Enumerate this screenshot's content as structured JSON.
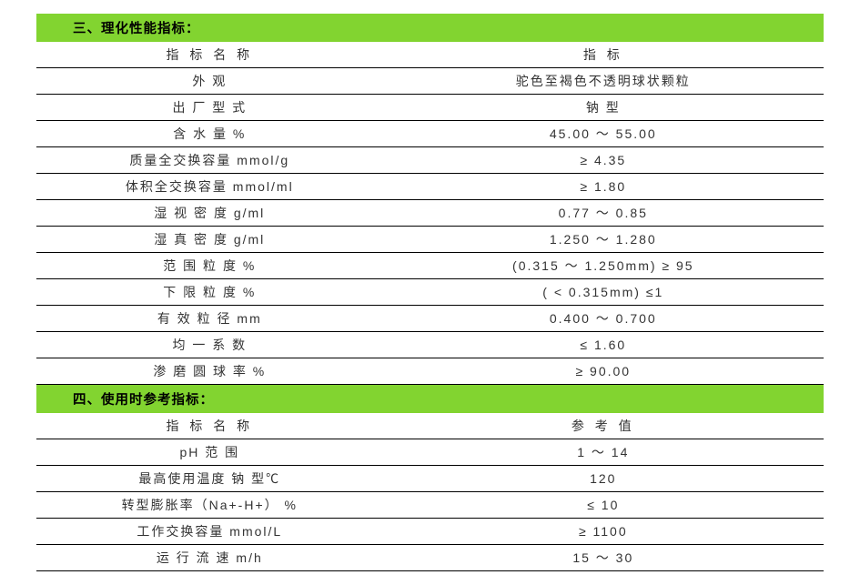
{
  "section1": {
    "title": "三、理化性能指标："
  },
  "section2": {
    "title": "四、使用时参考指标："
  },
  "table1": {
    "header": {
      "name": "指 标 名 称",
      "value": "指 标"
    },
    "rows": [
      {
        "name": "外 观",
        "value": "驼色至褐色不透明球状颗粒"
      },
      {
        "name": "出 厂 型 式",
        "value": "钠 型"
      },
      {
        "name": "含 水 量 %",
        "value": "45.00 ～ 55.00"
      },
      {
        "name": "质量全交换容量 mmol/g",
        "value": "≥ 4.35"
      },
      {
        "name": "体积全交换容量 mmol/ml",
        "value": "≥ 1.80"
      },
      {
        "name": "湿 视 密 度 g/ml",
        "value": "0.77 ～ 0.85"
      },
      {
        "name": "湿 真 密 度 g/ml",
        "value": "1.250 ～ 1.280"
      },
      {
        "name": "范 围 粒 度 %",
        "value": "(0.315 ～ 1.250mm) ≥ 95"
      },
      {
        "name": "下 限 粒 度 %",
        "value": "( < 0.315mm) ≤1"
      },
      {
        "name": "有 效 粒 径 mm",
        "value": "0.400 ～ 0.700"
      },
      {
        "name": "均 一 系 数",
        "value": "≤ 1.60"
      },
      {
        "name": "渗 磨 圆 球 率 %",
        "value": "≥ 90.00"
      }
    ]
  },
  "table2": {
    "header": {
      "name": "指 标 名 称",
      "value": "参 考 值"
    },
    "rows": [
      {
        "name": "pH 范 围",
        "value": "1 ～ 14"
      },
      {
        "name": "最高使用温度 钠 型℃",
        "value": "120"
      },
      {
        "name": "转型膨胀率（Na+-H+） %",
        "value": "≤ 10"
      },
      {
        "name": "工作交换容量 mmol/L",
        "value": "≥ 1100"
      },
      {
        "name": "运 行 流 速 m/h",
        "value": "15 ～ 30"
      }
    ]
  },
  "styling": {
    "header_bg_color": "#82d430",
    "border_color": "#000000",
    "text_color": "#333333",
    "font_size_body": 14,
    "font_size_header": 14.5,
    "col1_width_percent": 44,
    "col2_width_percent": 56,
    "row_padding_vertical": 4
  }
}
